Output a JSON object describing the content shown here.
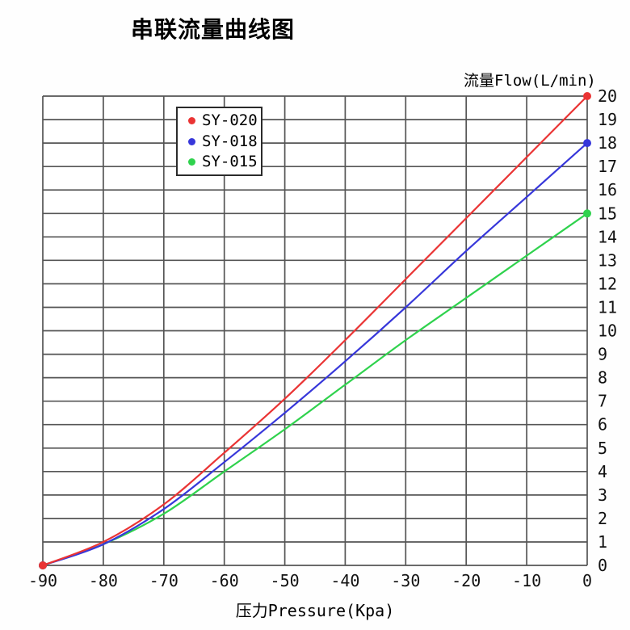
{
  "title": "串联流量曲线图",
  "chart_data": {
    "type": "line",
    "title": "串联流量曲线图",
    "xlabel": "压力Pressure(Kpa)",
    "ylabel": "流量Flow(L/min)",
    "x": [
      -90,
      -80,
      -70,
      -60,
      -50,
      -40,
      -30,
      -20,
      -10,
      0
    ],
    "series": [
      {
        "name": "SY-020",
        "color": "#ea3434",
        "values": [
          0,
          1.0,
          2.6,
          4.8,
          7.1,
          9.6,
          12.2,
          14.8,
          17.4,
          20
        ]
      },
      {
        "name": "SY-018",
        "color": "#3737da",
        "values": [
          0,
          0.9,
          2.4,
          4.4,
          6.5,
          8.7,
          11.0,
          13.4,
          15.7,
          18
        ]
      },
      {
        "name": "SY-015",
        "color": "#2fd24d",
        "values": [
          0,
          0.9,
          2.2,
          4.0,
          5.8,
          7.7,
          9.6,
          11.4,
          13.2,
          15
        ]
      }
    ],
    "xlim": [
      -90,
      0
    ],
    "ylim": [
      0,
      20
    ],
    "x_tick_step": 10,
    "y_tick_step": 1,
    "grid": true,
    "grid_color": "#555555",
    "tick_text_color": "#111111",
    "legend_position": "top-left-inside",
    "endpoint_markers": true,
    "y_tick_side": "right",
    "x_tick_side": "bottom"
  }
}
